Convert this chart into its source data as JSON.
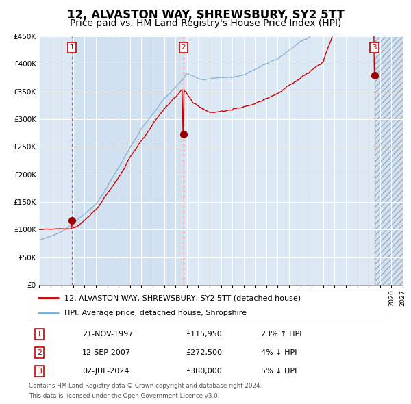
{
  "title": "12, ALVASTON WAY, SHREWSBURY, SY2 5TT",
  "subtitle": "Price paid vs. HM Land Registry's House Price Index (HPI)",
  "transactions": [
    {
      "num": 1,
      "date": "21-NOV-1997",
      "year": 1997.89,
      "price": 115950,
      "hpi_pct": "23% ↑ HPI"
    },
    {
      "num": 2,
      "date": "12-SEP-2007",
      "year": 2007.7,
      "price": 272500,
      "hpi_pct": "4% ↓ HPI"
    },
    {
      "num": 3,
      "date": "02-JUL-2024",
      "year": 2024.5,
      "price": 380000,
      "hpi_pct": "5% ↓ HPI"
    }
  ],
  "legend_line1": "12, ALVASTON WAY, SHREWSBURY, SY2 5TT (detached house)",
  "legend_line2": "HPI: Average price, detached house, Shropshire",
  "footer1": "Contains HM Land Registry data © Crown copyright and database right 2024.",
  "footer2": "This data is licensed under the Open Government Licence v3.0.",
  "price_line_color": "#cc0000",
  "hpi_line_color": "#7aaad0",
  "background_color": "#dce9f5",
  "vline_color": "#dd4444",
  "ylim": [
    0,
    450000
  ],
  "xlim_start": 1995.0,
  "xlim_end": 2027.0,
  "future_start": 2024.5,
  "title_fontsize": 12,
  "subtitle_fontsize": 10
}
